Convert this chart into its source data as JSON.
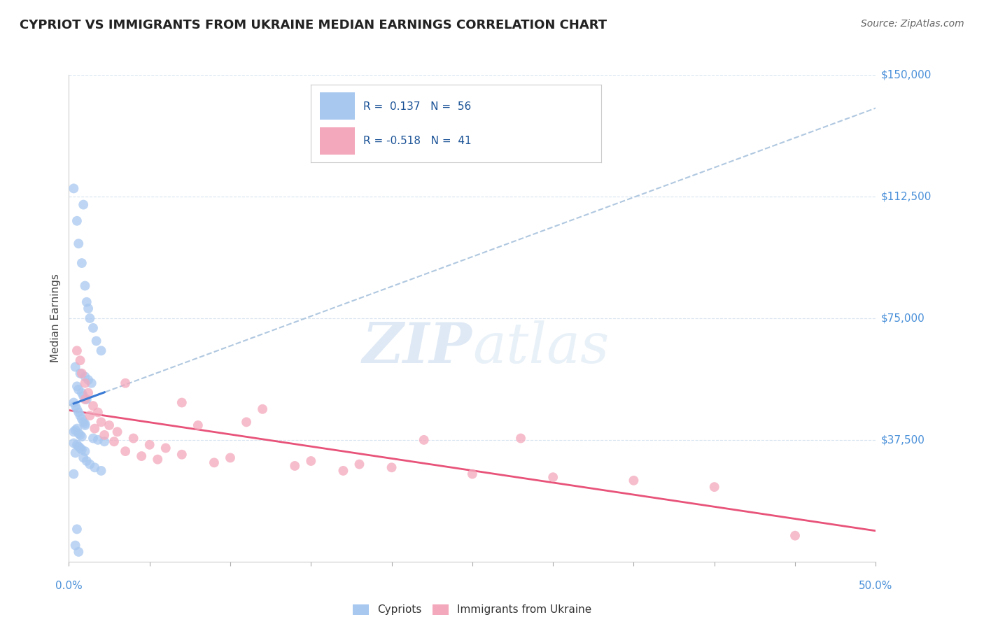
{
  "title": "CYPRIOT VS IMMIGRANTS FROM UKRAINE MEDIAN EARNINGS CORRELATION CHART",
  "source": "Source: ZipAtlas.com",
  "ylabel": "Median Earnings",
  "y_ticks": [
    0,
    37500,
    75000,
    112500,
    150000
  ],
  "y_tick_labels": [
    "",
    "$37,500",
    "$75,000",
    "$112,500",
    "$150,000"
  ],
  "x_min": 0.0,
  "x_max": 50.0,
  "y_min": 0,
  "y_max": 150000,
  "legend_r_blue": "0.137",
  "legend_n_blue": "56",
  "legend_r_pink": "-0.518",
  "legend_n_pink": "41",
  "blue_color": "#A8C8F0",
  "pink_color": "#F4A8BC",
  "blue_line_color": "#3A7BD5",
  "pink_line_color": "#E8537A",
  "dashed_line_color": "#B0C8E0",
  "grid_color": "#D8E4F0",
  "background_color": "#FFFFFF",
  "watermark_zip": "ZIP",
  "watermark_atlas": "atlas",
  "cypriots_x": [
    0.3,
    0.5,
    0.6,
    0.8,
    0.9,
    1.0,
    1.1,
    1.2,
    1.3,
    1.5,
    1.7,
    2.0,
    0.4,
    0.7,
    1.0,
    1.2,
    1.4,
    0.5,
    0.6,
    0.8,
    0.9,
    1.1,
    0.3,
    0.4,
    0.5,
    0.6,
    0.7,
    0.8,
    0.9,
    1.0,
    1.0,
    0.5,
    0.4,
    0.3,
    0.6,
    0.7,
    0.8,
    1.5,
    1.8,
    2.2,
    0.3,
    0.5,
    0.6,
    0.7,
    0.8,
    1.0,
    0.4,
    0.3,
    0.5,
    0.9,
    1.1,
    1.3,
    1.6,
    2.0,
    0.4,
    0.6
  ],
  "cypriots_y": [
    115000,
    105000,
    98000,
    92000,
    110000,
    85000,
    80000,
    78000,
    75000,
    72000,
    68000,
    65000,
    60000,
    58000,
    57000,
    56000,
    55000,
    54000,
    53000,
    52000,
    51000,
    50000,
    49000,
    48000,
    47000,
    46000,
    45000,
    44000,
    43000,
    42000,
    42500,
    41000,
    40500,
    40000,
    39500,
    39000,
    38500,
    38000,
    37500,
    37000,
    36500,
    36000,
    35500,
    35000,
    34500,
    34000,
    33500,
    27000,
    10000,
    32000,
    31000,
    30000,
    29000,
    28000,
    5000,
    3000
  ],
  "ukraine_x": [
    0.5,
    0.8,
    1.0,
    1.2,
    1.5,
    1.8,
    2.0,
    2.5,
    3.0,
    3.5,
    4.0,
    5.0,
    6.0,
    7.0,
    8.0,
    10.0,
    12.0,
    15.0,
    18.0,
    20.0,
    0.7,
    1.0,
    1.3,
    1.6,
    2.2,
    2.8,
    3.5,
    4.5,
    5.5,
    7.0,
    9.0,
    11.0,
    14.0,
    17.0,
    22.0,
    25.0,
    30.0,
    35.0,
    40.0,
    45.0,
    28.0
  ],
  "ukraine_y": [
    65000,
    58000,
    55000,
    52000,
    48000,
    46000,
    43000,
    42000,
    40000,
    55000,
    38000,
    36000,
    35000,
    33000,
    42000,
    32000,
    47000,
    31000,
    30000,
    29000,
    62000,
    50000,
    45000,
    41000,
    39000,
    37000,
    34000,
    32500,
    31500,
    49000,
    30500,
    43000,
    29500,
    28000,
    37500,
    27000,
    26000,
    25000,
    23000,
    8000,
    38000
  ]
}
